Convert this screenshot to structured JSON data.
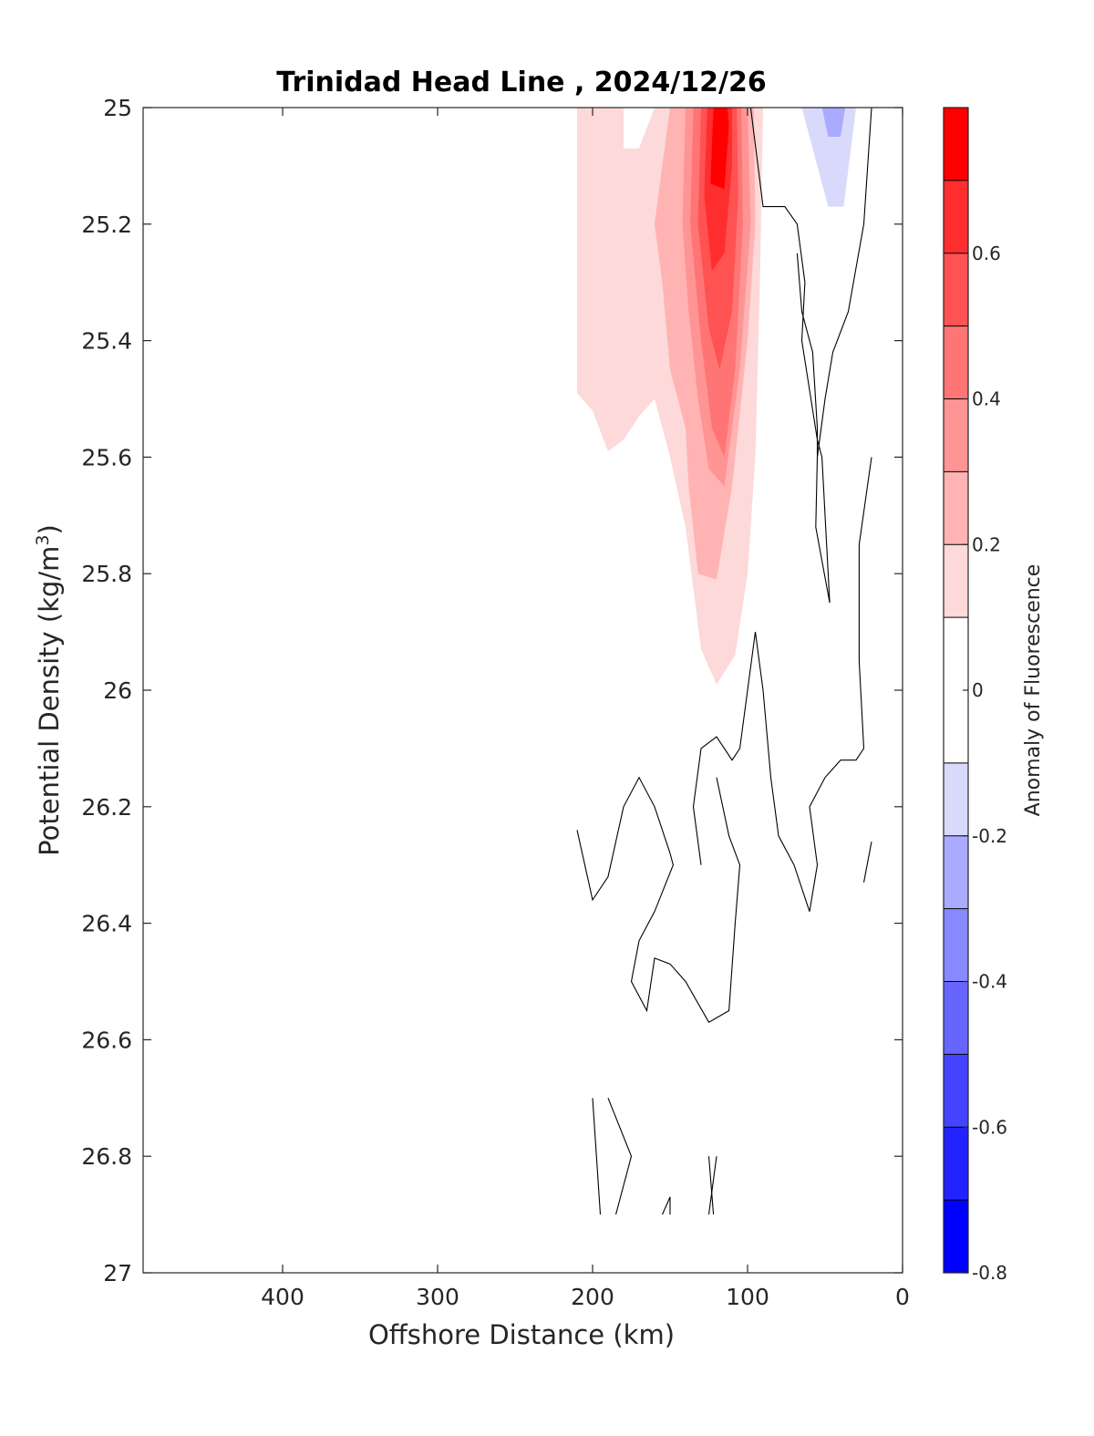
{
  "chart_data": {
    "type": "contour",
    "title": "Trinidad Head Line , 2024/12/26",
    "xlabel": "Offshore Distance (km)",
    "ylabel_main": "Potential Density (kg/m",
    "ylabel_sup": "3",
    "ylabel_close": ")",
    "xlim": [
      490,
      0
    ],
    "ylim": [
      27,
      25
    ],
    "x_ticks": [
      400,
      300,
      200,
      100,
      0
    ],
    "x_tick_labels": [
      "400",
      "300",
      "200",
      "100",
      "0"
    ],
    "y_ticks": [
      25,
      25.2,
      25.4,
      25.6,
      25.8,
      26,
      26.2,
      26.4,
      26.6,
      26.8,
      27
    ],
    "y_tick_labels": [
      "25",
      "25.2",
      "25.4",
      "25.6",
      "25.8",
      "26",
      "26.2",
      "26.4",
      "26.6",
      "26.8",
      "27"
    ],
    "colorbar": {
      "label": "Anomaly of Fluorescence",
      "range": [
        -0.8,
        0.8
      ],
      "levels": [
        -0.8,
        -0.7,
        -0.6,
        -0.5,
        -0.4,
        -0.3,
        -0.2,
        -0.1,
        0.1,
        0.2,
        0.3,
        0.4,
        0.5,
        0.6,
        0.7,
        0.8
      ],
      "bands": [
        {
          "from": -0.8,
          "to": -0.7,
          "color": "#0000ff"
        },
        {
          "from": -0.7,
          "to": -0.6,
          "color": "#2222ff"
        },
        {
          "from": -0.6,
          "to": -0.5,
          "color": "#4444ff"
        },
        {
          "from": -0.5,
          "to": -0.4,
          "color": "#6666ff"
        },
        {
          "from": -0.4,
          "to": -0.3,
          "color": "#8888ff"
        },
        {
          "from": -0.3,
          "to": -0.2,
          "color": "#aaaaff"
        },
        {
          "from": -0.2,
          "to": -0.1,
          "color": "#d9d9fb"
        },
        {
          "from": -0.1,
          "to": 0.1,
          "color": "#ffffff"
        },
        {
          "from": 0.1,
          "to": 0.2,
          "color": "#fdd9d9"
        },
        {
          "from": 0.2,
          "to": 0.3,
          "color": "#ffb3b3"
        },
        {
          "from": 0.3,
          "to": 0.4,
          "color": "#ff9494"
        },
        {
          "from": 0.4,
          "to": 0.5,
          "color": "#ff7575"
        },
        {
          "from": 0.5,
          "to": 0.6,
          "color": "#ff5252"
        },
        {
          "from": 0.6,
          "to": 0.7,
          "color": "#ff2e2e"
        },
        {
          "from": 0.7,
          "to": 0.8,
          "color": "#ff0000"
        }
      ],
      "ticks": [
        -0.8,
        -0.6,
        -0.4,
        -0.2,
        0,
        0.2,
        0.4,
        0.6
      ],
      "tick_labels": [
        "-0.8",
        "-0.6",
        "-0.4",
        "-0.2",
        "0",
        "0.2",
        "0.4",
        "0.6"
      ]
    },
    "filled_regions": [
      {
        "level": 0.1,
        "color": "#fdd9d9",
        "points": [
          [
            210,
            25.0
          ],
          [
            180,
            25.0
          ],
          [
            180,
            25.07
          ],
          [
            170,
            25.07
          ],
          [
            160,
            25.0
          ],
          [
            90,
            25.0
          ],
          [
            92,
            25.3
          ],
          [
            95,
            25.6
          ],
          [
            100,
            25.8
          ],
          [
            108,
            25.94
          ],
          [
            120,
            25.99
          ],
          [
            130,
            25.93
          ],
          [
            140,
            25.72
          ],
          [
            150,
            25.6
          ],
          [
            160,
            25.5
          ],
          [
            170,
            25.53
          ],
          [
            180,
            25.57
          ],
          [
            190,
            25.59
          ],
          [
            200,
            25.52
          ],
          [
            210,
            25.49
          ]
        ]
      },
      {
        "level": 0.2,
        "color": "#ffb3b3",
        "points": [
          [
            150,
            25.0
          ],
          [
            155,
            25.1
          ],
          [
            160,
            25.2
          ],
          [
            155,
            25.3
          ],
          [
            150,
            25.45
          ],
          [
            140,
            25.55
          ],
          [
            138,
            25.65
          ],
          [
            132,
            25.8
          ],
          [
            120,
            25.81
          ],
          [
            110,
            25.65
          ],
          [
            100,
            25.4
          ],
          [
            95,
            25.2
          ],
          [
            96,
            25.0
          ]
        ]
      },
      {
        "level": 0.3,
        "color": "#ff9494",
        "points": [
          [
            140,
            25.0
          ],
          [
            142,
            25.2
          ],
          [
            138,
            25.35
          ],
          [
            132,
            25.5
          ],
          [
            125,
            25.62
          ],
          [
            115,
            25.65
          ],
          [
            105,
            25.45
          ],
          [
            98,
            25.2
          ],
          [
            100,
            25.0
          ]
        ]
      },
      {
        "level": 0.4,
        "color": "#ff7575",
        "points": [
          [
            135,
            25.0
          ],
          [
            137,
            25.2
          ],
          [
            130,
            25.4
          ],
          [
            123,
            25.55
          ],
          [
            115,
            25.6
          ],
          [
            108,
            25.45
          ],
          [
            103,
            25.2
          ],
          [
            104,
            25.0
          ]
        ]
      },
      {
        "level": 0.5,
        "color": "#ff5252",
        "points": [
          [
            130,
            25.0
          ],
          [
            132,
            25.2
          ],
          [
            125,
            25.38
          ],
          [
            118,
            25.45
          ],
          [
            110,
            25.35
          ],
          [
            106,
            25.15
          ],
          [
            107,
            25.0
          ]
        ]
      },
      {
        "level": 0.6,
        "color": "#ff2e2e",
        "points": [
          [
            126,
            25.0
          ],
          [
            128,
            25.15
          ],
          [
            123,
            25.28
          ],
          [
            115,
            25.25
          ],
          [
            110,
            25.1
          ],
          [
            110,
            25.0
          ]
        ]
      },
      {
        "level": 0.7,
        "color": "#ff0000",
        "points": [
          [
            122,
            25.0
          ],
          [
            124,
            25.13
          ],
          [
            115,
            25.14
          ],
          [
            112,
            25.03
          ],
          [
            113,
            25.0
          ]
        ]
      },
      {
        "level": -0.1,
        "color": "#d9d9fb",
        "points": [
          [
            65,
            25.0
          ],
          [
            58,
            25.07
          ],
          [
            48,
            25.17
          ],
          [
            38,
            25.17
          ],
          [
            30,
            25.0
          ]
        ]
      },
      {
        "level": -0.2,
        "color": "#aaaaff",
        "points": [
          [
            52,
            25.0
          ],
          [
            48,
            25.05
          ],
          [
            40,
            25.05
          ],
          [
            37,
            25.0
          ]
        ]
      }
    ],
    "contour_lines": [
      [
        [
          98,
          25.0
        ],
        [
          90,
          25.17
        ],
        [
          76,
          25.17
        ],
        [
          68,
          25.2
        ],
        [
          63,
          25.3
        ],
        [
          65,
          25.4
        ],
        [
          55,
          25.57
        ],
        [
          52,
          25.6
        ],
        [
          48,
          25.8
        ],
        [
          47,
          25.85
        ],
        [
          56,
          25.72
        ],
        [
          55,
          25.6
        ],
        [
          55,
          25.55
        ],
        [
          58,
          25.42
        ],
        [
          65,
          25.35
        ],
        [
          68,
          25.25
        ]
      ],
      [
        [
          20,
          25.0
        ],
        [
          25,
          25.2
        ],
        [
          35,
          25.35
        ],
        [
          45,
          25.42
        ],
        [
          50,
          25.5
        ],
        [
          55,
          25.6
        ]
      ],
      [
        [
          20,
          25.6
        ],
        [
          28,
          25.75
        ],
        [
          28,
          25.95
        ],
        [
          25,
          26.1
        ],
        [
          30,
          26.12
        ],
        [
          40,
          26.12
        ],
        [
          50,
          26.15
        ],
        [
          60,
          26.2
        ],
        [
          55,
          26.3
        ],
        [
          60,
          26.38
        ],
        [
          70,
          26.3
        ],
        [
          80,
          26.25
        ],
        [
          85,
          26.15
        ],
        [
          90,
          26.0
        ],
        [
          95,
          25.9
        ],
        [
          105,
          26.1
        ],
        [
          110,
          26.12
        ],
        [
          120,
          26.08
        ],
        [
          130,
          26.1
        ],
        [
          135,
          26.2
        ],
        [
          130,
          26.3
        ]
      ],
      [
        [
          210,
          26.24
        ],
        [
          200,
          26.36
        ],
        [
          190,
          26.32
        ],
        [
          180,
          26.2
        ],
        [
          170,
          26.15
        ],
        [
          160,
          26.2
        ],
        [
          150,
          26.28
        ],
        [
          148,
          26.3
        ],
        [
          160,
          26.38
        ],
        [
          170,
          26.43
        ],
        [
          175,
          26.5
        ],
        [
          165,
          26.55
        ],
        [
          160,
          26.46
        ],
        [
          150,
          26.47
        ],
        [
          140,
          26.5
        ],
        [
          125,
          26.57
        ],
        [
          112,
          26.55
        ],
        [
          108,
          26.4
        ],
        [
          105,
          26.3
        ],
        [
          112,
          26.25
        ],
        [
          120,
          26.15
        ]
      ],
      [
        [
          200,
          26.7
        ],
        [
          195,
          26.9
        ]
      ],
      [
        [
          190,
          26.7
        ],
        [
          175,
          26.8
        ],
        [
          185,
          26.9
        ]
      ],
      [
        [
          125,
          26.8
        ],
        [
          122,
          26.9
        ]
      ],
      [
        [
          120,
          26.8
        ],
        [
          125,
          26.9
        ]
      ],
      [
        [
          155,
          26.9
        ],
        [
          150,
          26.87
        ],
        [
          150,
          26.9
        ]
      ],
      [
        [
          20,
          26.26
        ],
        [
          25,
          26.33
        ]
      ]
    ]
  }
}
